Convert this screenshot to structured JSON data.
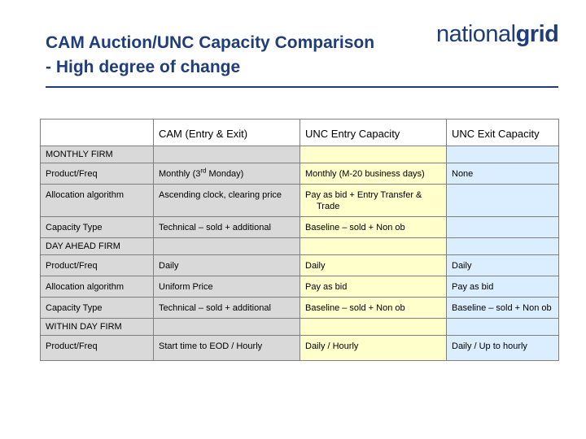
{
  "slide": {
    "title_line1": "CAM Auction/UNC Capacity Comparison",
    "title_line2": "- High degree of change",
    "logo_left": "national",
    "logo_right": "grid"
  },
  "colors": {
    "title": "#1f3d7a",
    "grey_cells": "#d9d9d9",
    "unc_entry_cells": "#ffffcc",
    "unc_exit_cells": "#dbeeff"
  },
  "table": {
    "headers": [
      "",
      "CAM (Entry & Exit)",
      "UNC Entry Capacity",
      "UNC Exit Capacity"
    ],
    "sections": [
      {
        "name": "MONTHLY FIRM",
        "rows": [
          {
            "label": "Product/Freq",
            "cam_pre": "Monthly (3",
            "cam_sup": "rd",
            "cam_post": " Monday)",
            "entry": "Monthly (M-20 business days)",
            "exit": "None"
          },
          {
            "label": "Allocation algorithm",
            "cam": "Ascending clock, clearing price",
            "entry": "Pay as bid + Entry Transfer & Trade",
            "exit": ""
          },
          {
            "label": "Capacity Type",
            "cam": "Technical – sold + additional",
            "entry": "Baseline – sold + Non ob",
            "exit": ""
          }
        ]
      },
      {
        "name": "DAY AHEAD FIRM",
        "rows": [
          {
            "label": "Product/Freq",
            "cam": "Daily",
            "entry": "Daily",
            "exit": "Daily"
          },
          {
            "label": "Allocation algorithm",
            "cam": "Uniform Price",
            "entry": "Pay as bid",
            "exit": "Pay as bid"
          },
          {
            "label": "Capacity Type",
            "cam": "Technical – sold + additional",
            "entry": "Baseline – sold + Non ob",
            "exit": "Baseline – sold + Non ob"
          }
        ]
      },
      {
        "name": "WITHIN DAY FIRM",
        "rows": [
          {
            "label": "Product/Freq",
            "cam": "Start time to EOD / Hourly",
            "entry": "Daily / Hourly",
            "exit": "Daily / Up to hourly"
          }
        ]
      }
    ]
  }
}
